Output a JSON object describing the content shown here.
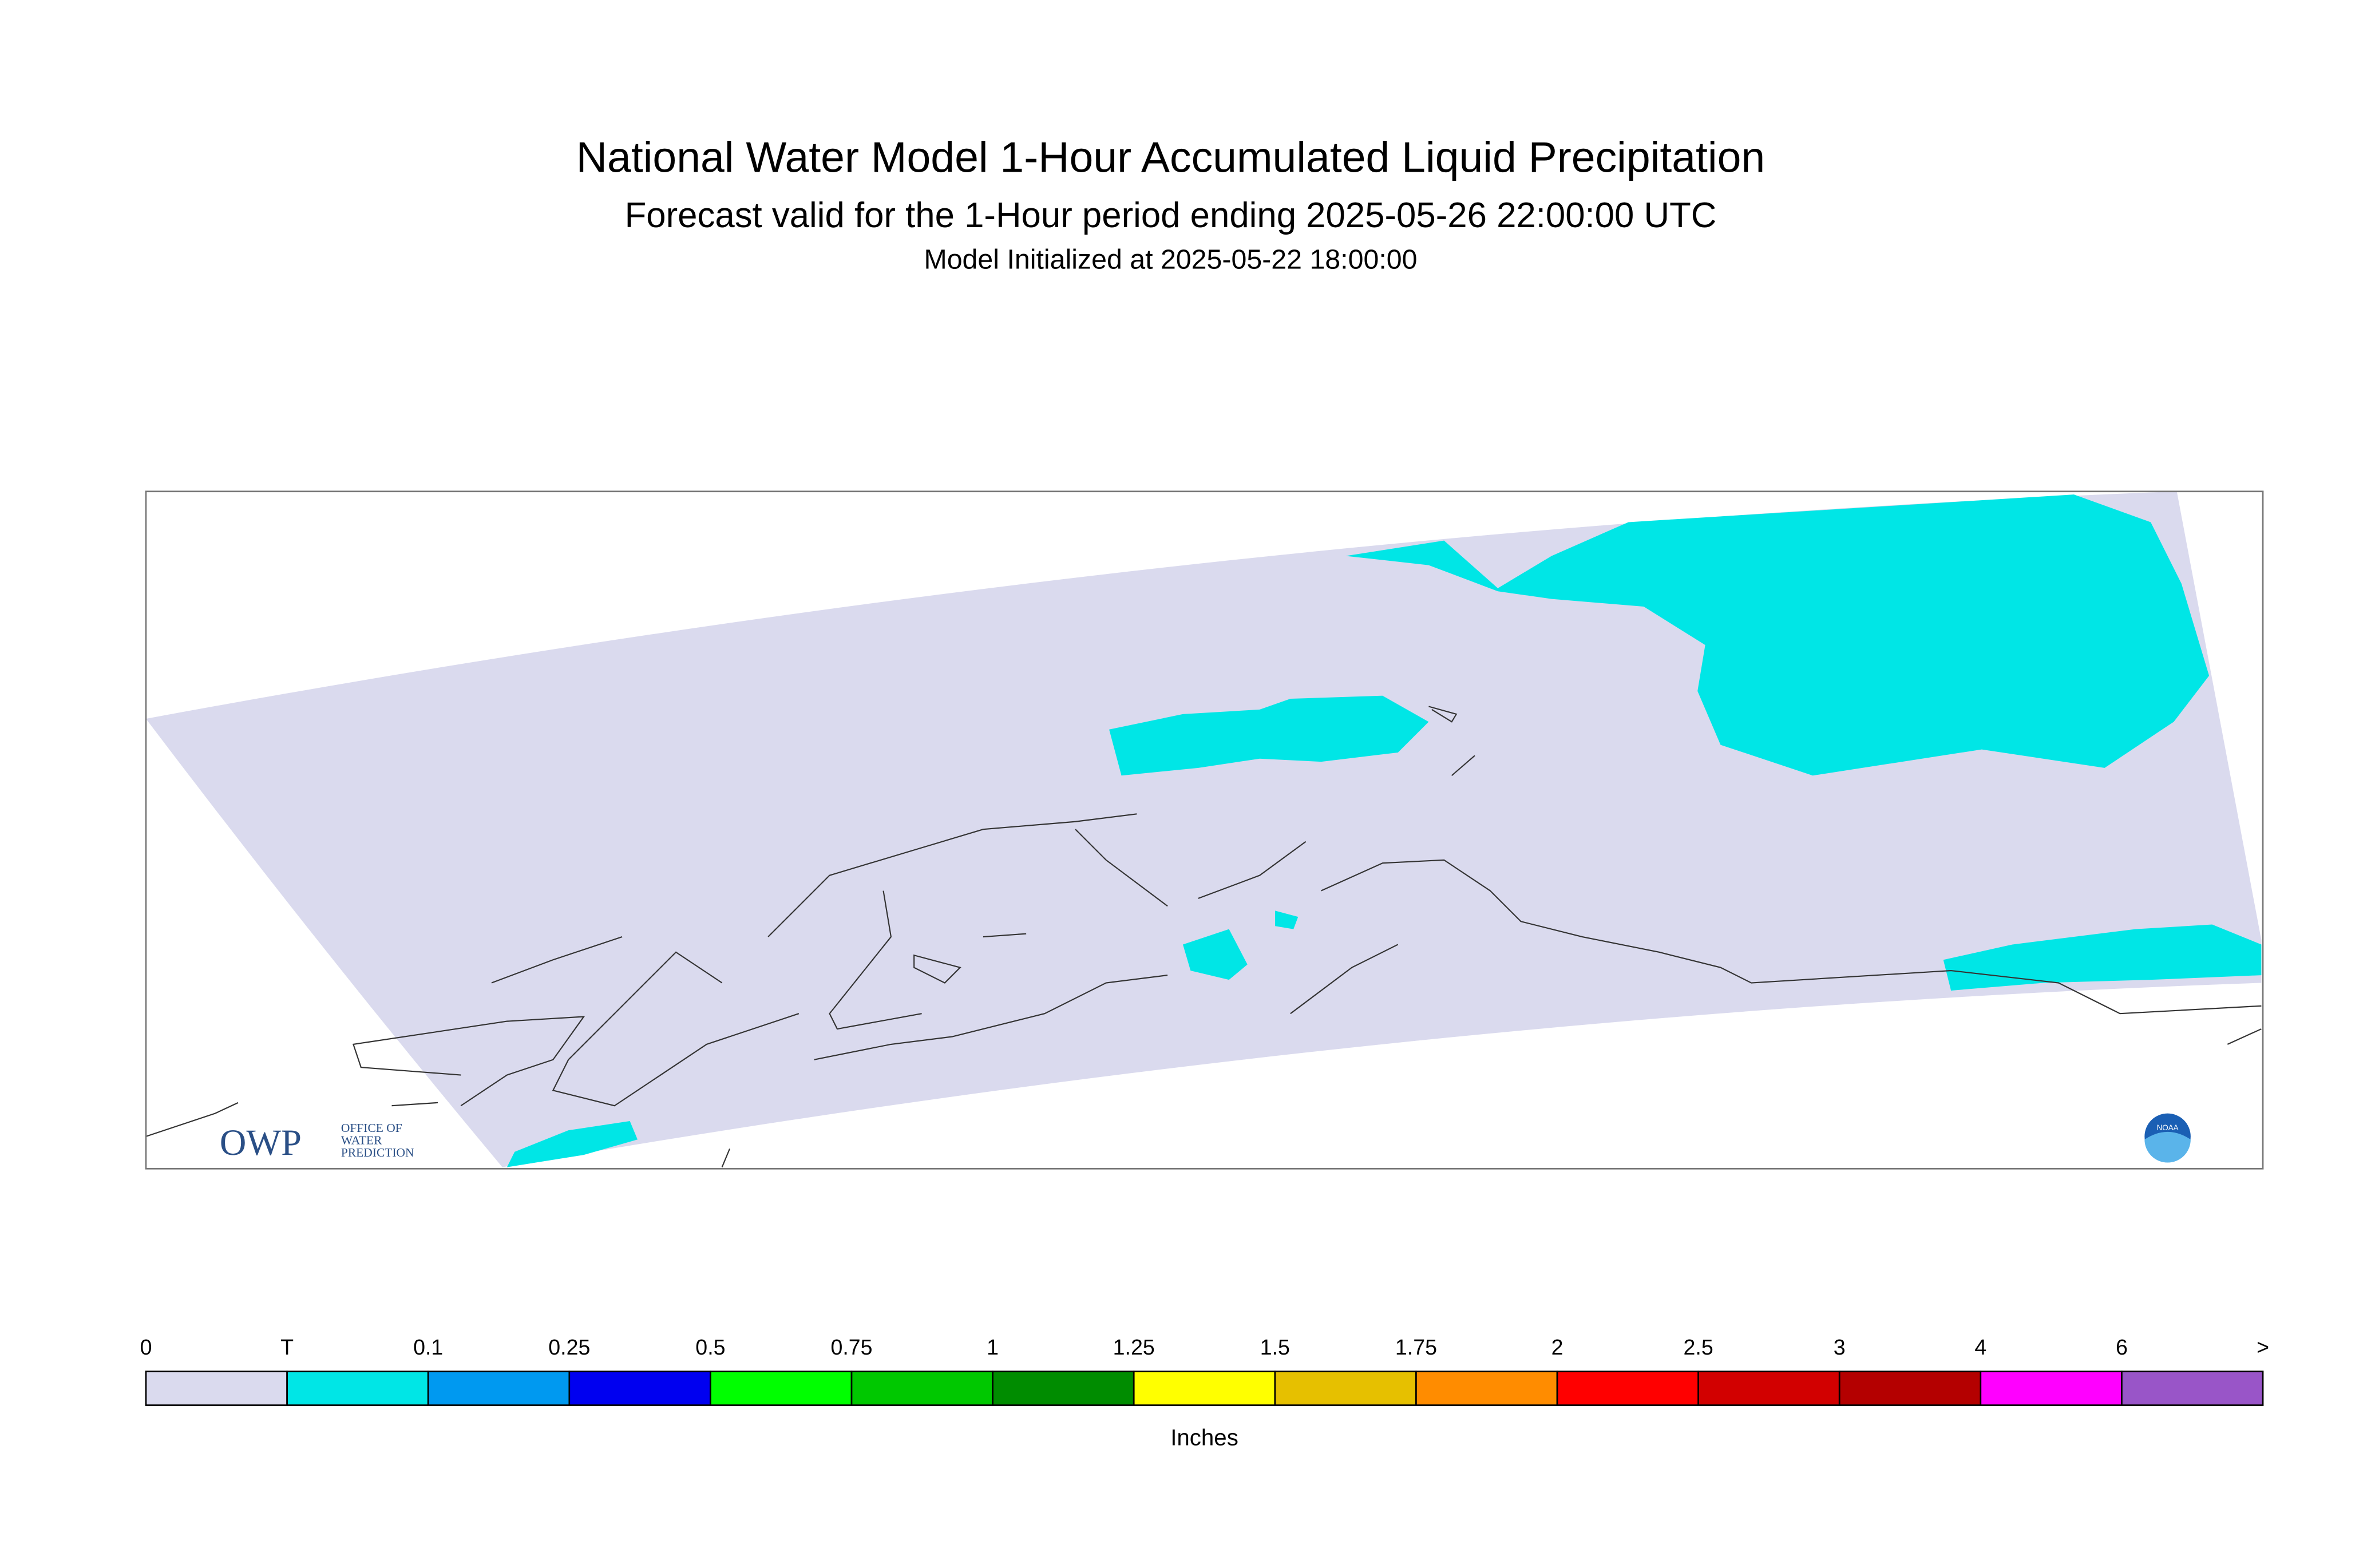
{
  "header": {
    "title": "National Water Model 1-Hour Accumulated Liquid Precipitation",
    "subtitle": "Forecast valid for the 1-Hour period ending 2025-05-26 22:00:00 UTC",
    "initialized": "Model Initialized at 2025-05-22 18:00:00"
  },
  "colorbar": {
    "labels": [
      "0",
      "T",
      "0.1",
      "0.25",
      "0.5",
      "0.75",
      "1",
      "1.25",
      "1.5",
      "1.75",
      "2",
      "2.5",
      "3",
      "4",
      "6",
      ">"
    ],
    "colors": [
      "#dadaee",
      "#00e6e6",
      "#0099f0",
      "#0000f0",
      "#00ff00",
      "#00c800",
      "#008c00",
      "#ffff00",
      "#e6c000",
      "#ff8c00",
      "#ff0000",
      "#d20000",
      "#b40000",
      "#ff00ff",
      "#9955c8"
    ],
    "unit": "Inches"
  },
  "logos": {
    "owp": "OWP",
    "owp_line1": "OFFICE OF",
    "owp_line2": "WATER",
    "owp_line3": "PREDICTION",
    "noaa": "NOAA"
  }
}
